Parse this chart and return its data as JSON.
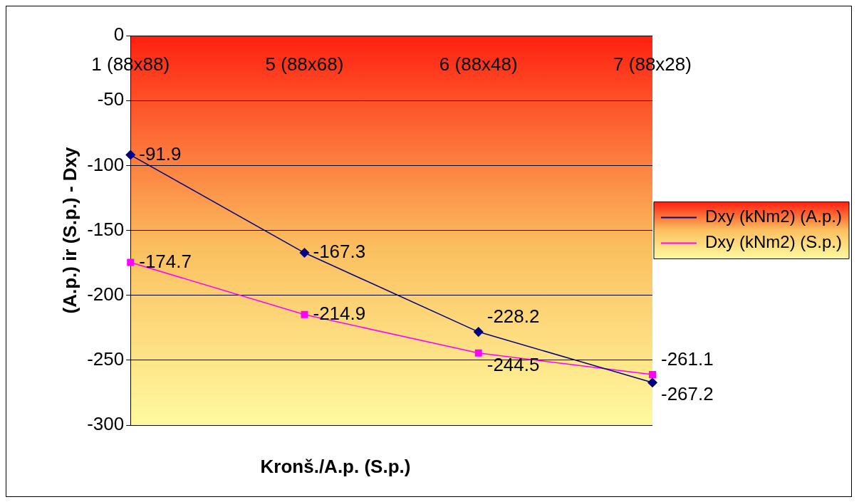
{
  "chart_data": {
    "type": "line",
    "xlabel": "Kronš./A.p. (S.p.)",
    "ylabel": "(A.p.) ir (S.p.) - Dxy",
    "categories": [
      "1 (88x88)",
      "5 (88x68)",
      "6 (88x48)",
      "7 (88x28)"
    ],
    "series": [
      {
        "name": "Dxy (kNm2) (A.p.)",
        "color": "#000080",
        "marker": "diamond",
        "values": [
          -91.9,
          -167.3,
          -228.2,
          -267.2
        ]
      },
      {
        "name": "Dxy (kNm2) (S.p.)",
        "color": "#ff00ff",
        "marker": "square",
        "values": [
          -174.7,
          -214.9,
          -244.5,
          -261.1
        ]
      }
    ],
    "ylim": [
      -300,
      0
    ],
    "yticks": [
      0,
      -50,
      -100,
      -150,
      -200,
      -250,
      -300
    ],
    "grid": "y",
    "legend": "right",
    "data_labels": true
  }
}
